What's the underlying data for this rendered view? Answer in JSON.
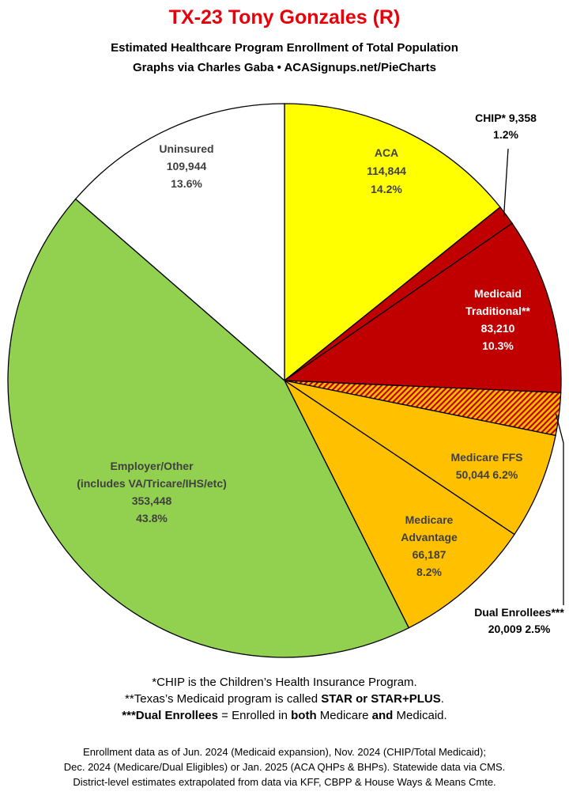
{
  "header": {
    "title": "TX-23 Tony Gonzales (R)",
    "subtitle1": "Estimated Healthcare Program Enrollment of Total Population",
    "subtitle2": "Graphs via Charles Gaba  •  ACASignups.net/PieCharts"
  },
  "chart_data": {
    "type": "pie",
    "slices": [
      {
        "label": "ACA",
        "value": 114844,
        "percent": "14.2%",
        "value_text": "114,844",
        "color": "#ffff00"
      },
      {
        "label": "CHIP* 9,358",
        "value": 9358,
        "percent": "1.2%",
        "color": "#c00000"
      },
      {
        "label": "Medicaid Traditional**",
        "value": 83210,
        "percent": "10.3%",
        "value_text": "83,210",
        "color": "#c00000"
      },
      {
        "label": "Dual Enrollees***",
        "value": 20009,
        "percent": "2.5%",
        "value_text": "20,009 2.5%",
        "color": "#c00000",
        "pattern": "hatched"
      },
      {
        "label": "Medicare FFS",
        "value": 50044,
        "percent": "6.2%",
        "value_text": "50,044 6.2%",
        "color": "#ffc000"
      },
      {
        "label": "Medicare Advantage",
        "value": 66187,
        "percent": "8.2%",
        "value_text": "66,187",
        "color": "#ffc000"
      },
      {
        "label": "Employer/Other (includes VA/Tricare/IHS/etc)",
        "value": 353448,
        "percent": "43.8%",
        "value_text": "353,448",
        "color": "#92d050"
      },
      {
        "label": "Uninsured",
        "value": 109944,
        "percent": "13.6%",
        "value_text": "109,944",
        "color": "#ffffff"
      }
    ],
    "labels": {
      "aca": [
        "ACA",
        "114,844",
        "14.2%"
      ],
      "chip": [
        "CHIP* 9,358",
        "1.2%"
      ],
      "medicaid": [
        "Medicaid",
        "Traditional**",
        "83,210",
        "10.3%"
      ],
      "ffs": [
        "Medicare FFS",
        "50,044 6.2%"
      ],
      "advantage": [
        "Medicare",
        "Advantage",
        "66,187",
        "8.2%"
      ],
      "dual": [
        "Dual Enrollees***",
        "20,009 2.5%"
      ],
      "employer": [
        "Employer/Other",
        "(includes VA/Tricare/IHS/etc)",
        "353,448",
        "43.8%"
      ],
      "uninsured": [
        "Uninsured",
        "109,944",
        "13.6%"
      ]
    }
  },
  "notes": {
    "line1": "*CHIP is the Children’s Health Insurance Program.",
    "line2_a": "**Texas’s Medicaid program is called ",
    "line2_b": "STAR or STAR+PLUS",
    "line2_c": ".",
    "line3_a": "***Dual Enrollees",
    "line3_b": " = Enrolled in ",
    "line3_c": "both",
    "line3_d": " Medicare ",
    "line3_e": "and",
    "line3_f": " Medicaid."
  },
  "footer": {
    "line1": "Enrollment data as of Jun. 2024 (Medicaid expansion), Nov. 2024 (CHIP/Total Medicaid);",
    "line2": "Dec. 2024 (Medicare/Dual Eligibles) or Jan. 2025 (ACA QHPs & BHPs). Statewide data via CMS.",
    "line3": "District-level estimates extrapolated from data via KFF, CBPP & House Ways & Means Cmte."
  }
}
